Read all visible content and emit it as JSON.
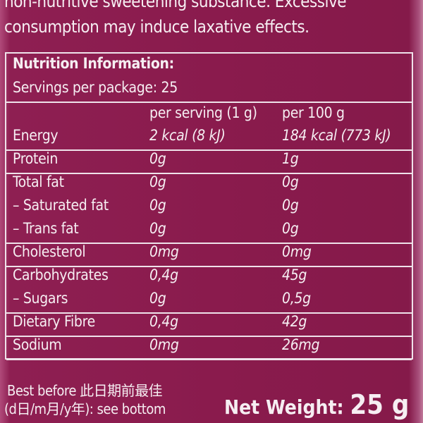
{
  "warning": {
    "line1": "non-nutritive sweetening substance. Excessive",
    "line2": "consumption may induce laxative effects."
  },
  "nutrition": {
    "title": "Nutrition Information:",
    "servings": "Servings per package: 25",
    "col_per_serving": "per serving (1 g)",
    "col_per_100g": "per 100 g",
    "rows": [
      {
        "label": "Energy",
        "per_serving": "2 kcal (8 kJ)",
        "per_100g": "184 kcal (773 kJ)"
      },
      {
        "label": "Protein",
        "per_serving": "0g",
        "per_100g": "1g"
      },
      {
        "label": "Total fat",
        "per_serving": "0g",
        "per_100g": "0g"
      },
      {
        "label": "– Saturated fat",
        "per_serving": "0g",
        "per_100g": "0g"
      },
      {
        "label": "– Trans fat",
        "per_serving": "0g",
        "per_100g": "0g"
      },
      {
        "label": "Cholesterol",
        "per_serving": "0mg",
        "per_100g": "0mg"
      },
      {
        "label": "Carbohydrates",
        "per_serving": "0,4g",
        "per_100g": "45g"
      },
      {
        "label": "– Sugars",
        "per_serving": "0g",
        "per_100g": "0,5g"
      },
      {
        "label": "Dietary Fibre",
        "per_serving": "0,4g",
        "per_100g": "42g"
      },
      {
        "label": "Sodium",
        "per_serving": "0mg",
        "per_100g": "26mg"
      }
    ]
  },
  "footer": {
    "best_before_line1": "Best before 此日期前最佳",
    "best_before_line2": "(d日/m月/y年): see bottom",
    "net_weight_label": "Net Weight:",
    "net_weight_value": "25 g"
  },
  "colors": {
    "background": "#8a1b4d",
    "text": "#f6eef2"
  }
}
